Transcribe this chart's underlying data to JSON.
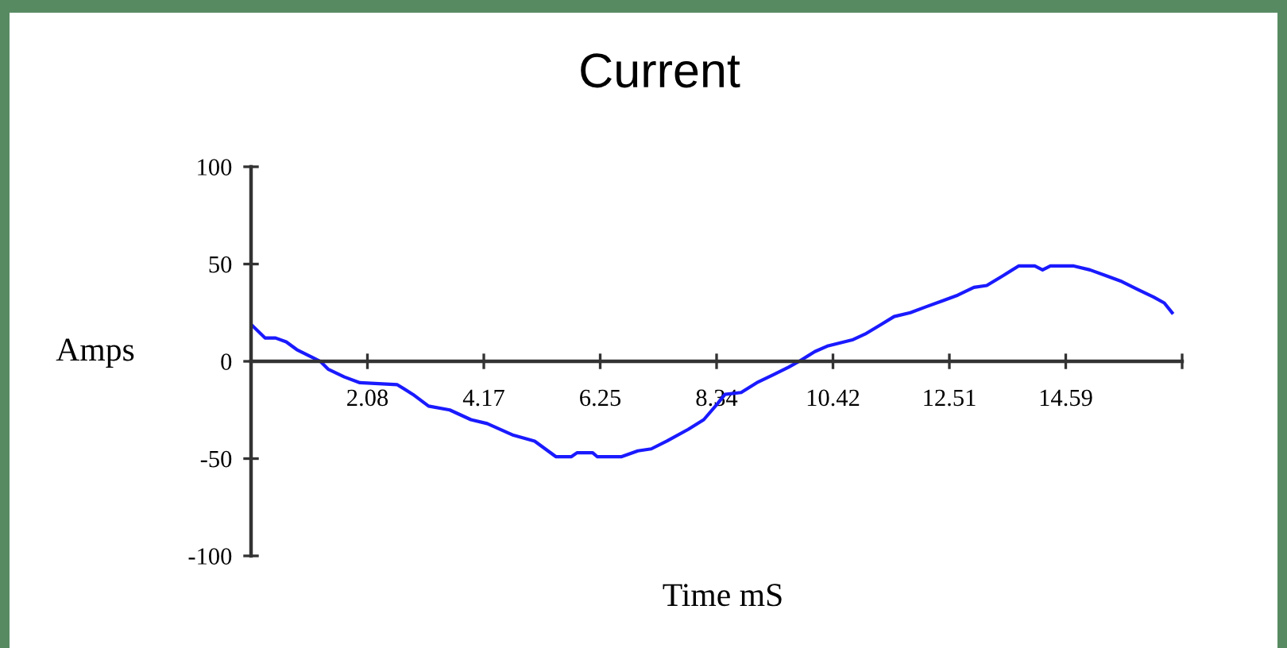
{
  "chart_data": {
    "type": "line",
    "title": "Current",
    "xlabel": "Time mS",
    "ylabel": "Amps",
    "x": [
      0,
      0.25,
      0.44,
      0.63,
      0.82,
      1.1,
      1.24,
      1.38,
      1.67,
      1.95,
      2.62,
      2.9,
      3.18,
      3.56,
      3.94,
      4.23,
      4.7,
      5.08,
      5.46,
      5.74,
      5.84,
      6.12,
      6.2,
      6.64,
      6.93,
      7.17,
      7.45,
      7.83,
      8.11,
      8.35,
      8.49,
      8.78,
      9.06,
      9.35,
      9.63,
      9.82,
      10.1,
      10.34,
      10.77,
      11.0,
      11.29,
      11.52,
      11.81,
      12.09,
      12.38,
      12.66,
      12.95,
      13.18,
      13.47,
      13.75,
      14.04,
      14.18,
      14.32,
      14.74,
      15.03,
      15.32,
      15.6,
      15.88,
      16.17,
      16.36,
      16.5
    ],
    "series": [
      {
        "color": "#1a1aff",
        "values": [
          19,
          12,
          12,
          10,
          6,
          2,
          0,
          -4,
          -8,
          -11,
          -12,
          -17,
          -23,
          -25,
          -30,
          -32,
          -38,
          -41,
          -49,
          -49,
          -47,
          -47,
          -49,
          -49,
          -46,
          -45,
          -41,
          -35,
          -30,
          -22,
          -17,
          -16,
          -11,
          -7,
          -3,
          0,
          5,
          8,
          11,
          14,
          19,
          23,
          25,
          28,
          31,
          34,
          38,
          39,
          44,
          49,
          49,
          47,
          49,
          49,
          47,
          44,
          41,
          37,
          33,
          30,
          25
        ]
      }
    ],
    "xlim": [
      0,
      16.68
    ],
    "ylim": [
      -100,
      100
    ],
    "xticks": [
      {
        "value": 2.085,
        "label": "2.08"
      },
      {
        "value": 4.17,
        "label": "4.17"
      },
      {
        "value": 6.255,
        "label": "6.25"
      },
      {
        "value": 8.34,
        "label": "8.34"
      },
      {
        "value": 10.425,
        "label": "10.42"
      },
      {
        "value": 12.51,
        "label": "12.51"
      },
      {
        "value": 14.595,
        "label": "14.59"
      },
      {
        "value": 16.68,
        "label": null
      }
    ],
    "yticks": [
      -100,
      -50,
      0,
      50,
      100
    ],
    "grid": false,
    "marker": "none",
    "line_style": "solid"
  }
}
